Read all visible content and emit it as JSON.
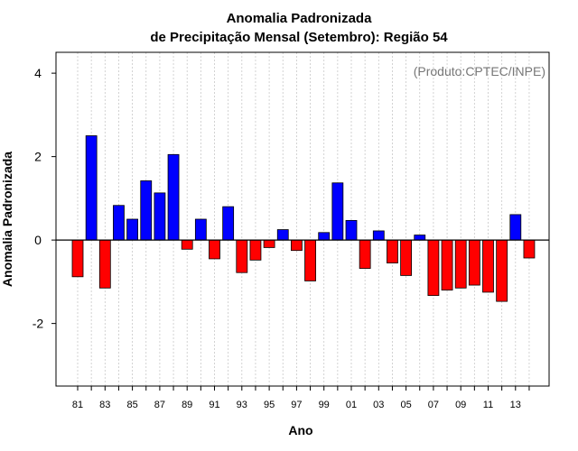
{
  "chart_data": {
    "type": "bar",
    "title": "Anomalia Padronizada",
    "subtitle": "de Precipitação Mensal (Setembro): Região 54",
    "credit": "(Produto:CPTEC/INPE)",
    "xlabel": "Ano",
    "ylabel": "Anomalia Padronizada",
    "ylim": [
      -3.5,
      4.5
    ],
    "yticks": [
      -2,
      0,
      2,
      4
    ],
    "yticklabels": [
      "-2",
      "0",
      "2",
      "4"
    ],
    "xticklabels": [
      "81",
      "83",
      "85",
      "87",
      "89",
      "91",
      "93",
      "95",
      "97",
      "99",
      "01",
      "03",
      "05",
      "07",
      "09",
      "11",
      "13"
    ],
    "grid": true,
    "positive_color": "#0000ff",
    "negative_color": "#ff0000",
    "categories": [
      "81",
      "82",
      "83",
      "84",
      "85",
      "86",
      "87",
      "88",
      "89",
      "90",
      "91",
      "92",
      "93",
      "94",
      "95",
      "96",
      "97",
      "98",
      "99",
      "00",
      "01",
      "02",
      "03",
      "04",
      "05",
      "06",
      "07",
      "08",
      "09",
      "10",
      "11",
      "12",
      "13",
      "14"
    ],
    "values": [
      -0.88,
      2.5,
      -1.15,
      0.83,
      0.5,
      1.42,
      1.13,
      2.05,
      -0.22,
      0.5,
      -0.45,
      0.8,
      -0.78,
      -0.48,
      -0.18,
      0.25,
      -0.25,
      -0.98,
      0.18,
      1.37,
      0.47,
      -0.68,
      0.22,
      -0.55,
      -0.85,
      0.12,
      -1.33,
      -1.2,
      -1.15,
      -1.08,
      -1.25,
      -1.47,
      0.61,
      -0.43
    ]
  }
}
